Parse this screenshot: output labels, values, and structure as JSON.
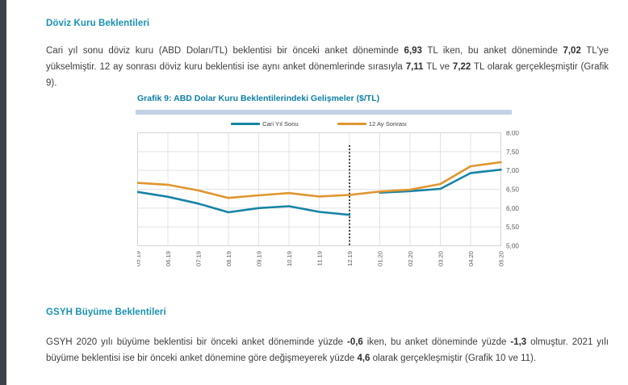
{
  "fx_section": {
    "heading": "Döviz Kuru Beklentileri",
    "paragraph": [
      {
        "t": "Cari yıl sonu döviz kuru (ABD Doları/TL) beklentisi bir önceki anket döneminde ",
        "b": false
      },
      {
        "t": "6,93",
        "b": true
      },
      {
        "t": " TL iken, bu anket döneminde ",
        "b": false
      },
      {
        "t": "7,02",
        "b": true
      },
      {
        "t": " TL'ye yükselmiştir. 12 ay sonrası döviz kuru beklentisi ise aynı anket dönemlerinde sırasıyla ",
        "b": false
      },
      {
        "t": "7,11",
        "b": true
      },
      {
        "t": " TL ve ",
        "b": false
      },
      {
        "t": "7,22",
        "b": true
      },
      {
        "t": " TL olarak gerçekleşmiştir (Grafik 9).",
        "b": false
      }
    ]
  },
  "chart": {
    "title": "Grafik 9: ABD Dolar Kuru Beklentilerindeki Gelişmeler ($/TL)"
  },
  "chart_data": {
    "type": "line",
    "title": "Grafik 9: ABD Dolar Kuru Beklentilerindeki Gelişmeler ($/TL)",
    "categories": [
      "05.19",
      "06.19",
      "07.19",
      "08.19",
      "09.19",
      "10.19",
      "11.19",
      "12.19",
      "01.20",
      "02.20",
      "03.20",
      "04.20",
      "05.20"
    ],
    "series": [
      {
        "name": "Cari Yıl Sonu",
        "color": "#1784A6",
        "values": [
          6.43,
          6.3,
          6.12,
          5.89,
          6.0,
          6.05,
          5.9,
          5.82,
          6.41,
          6.45,
          6.51,
          6.93,
          7.02
        ],
        "gap_after": 7
      },
      {
        "name": "12 Ay Sonrası",
        "color": "#E0962F",
        "values": [
          6.67,
          6.62,
          6.47,
          6.27,
          6.34,
          6.4,
          6.31,
          6.35,
          6.44,
          6.49,
          6.64,
          7.11,
          7.22
        ]
      }
    ],
    "ylim": [
      5.0,
      8.0
    ],
    "ytick_step": 0.5,
    "yticks_labels": [
      "8,00",
      "7,50",
      "7,00",
      "6,50",
      "6,00",
      "5,50",
      "5,00"
    ],
    "marker_category": "12.19",
    "marker_index": 7,
    "legend_position": "top",
    "grid": true,
    "colors": {
      "gridline": "#E3E3E3",
      "plot_border": "#D5D5D5",
      "axis_bottom": "#BFBFBF",
      "axis_text": "#595959",
      "marker_line": "#000000"
    }
  },
  "gdp_section": {
    "heading": "GSYH Büyüme Beklentileri",
    "paragraph": [
      {
        "t": "GSYH 2020 yılı büyüme beklentisi bir önceki anket döneminde yüzde ",
        "b": false
      },
      {
        "t": "-0,6",
        "b": true
      },
      {
        "t": " iken, bu anket döneminde yüzde ",
        "b": false
      },
      {
        "t": "-1,3",
        "b": true
      },
      {
        "t": " olmuştur. 2021 yılı büyüme beklentisi ise bir önceki anket dönemine göre değişmeyerek yüzde ",
        "b": false
      },
      {
        "t": "4,6",
        "b": true
      },
      {
        "t": " olarak gerçekleşmiştir (Grafik 10 ve 11).",
        "b": false
      }
    ]
  },
  "theme": {
    "heading_color": "#1791B4",
    "chart_title_color": "#0E7FA6",
    "body_text_color": "#3C3C3C",
    "left_bar_color": "#3E434A",
    "divider_color": "#C3D2E4"
  }
}
